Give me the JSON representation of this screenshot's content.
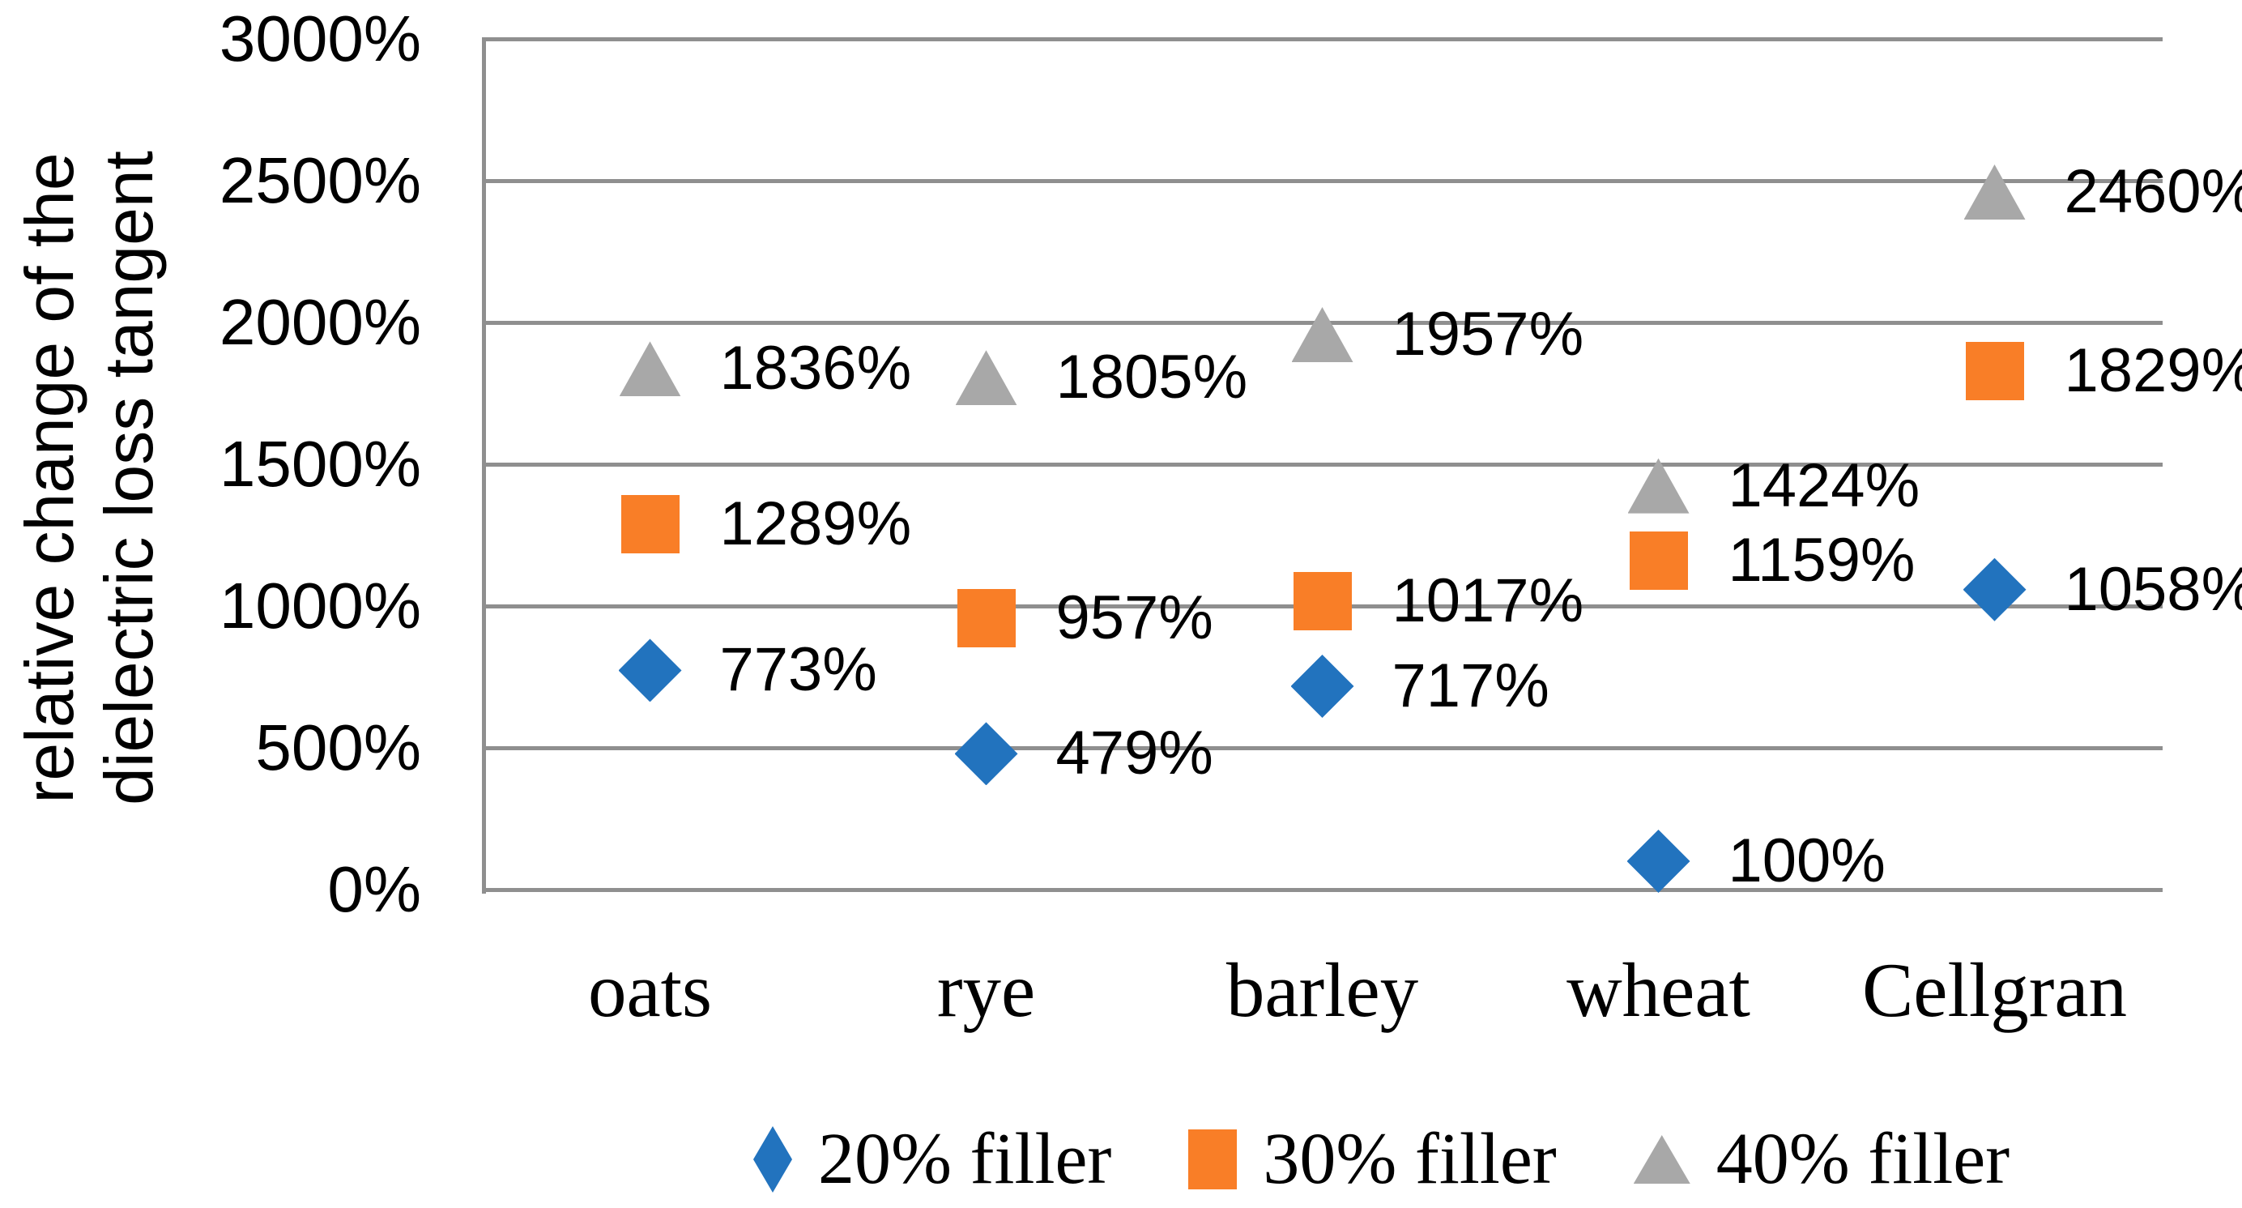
{
  "chart_data": {
    "type": "scatter",
    "ylabel": "relative change of the dielectric loss tangent",
    "ylabel_lines": [
      "relative change of the",
      "dielectric loss tangent"
    ],
    "categories": [
      "oats",
      "rye",
      "barley",
      "wheat",
      "Cellgran"
    ],
    "series": [
      {
        "name": "20% filler",
        "marker": "diamond",
        "color": "#2273BE",
        "values": [
          773,
          479,
          717,
          100,
          1058
        ]
      },
      {
        "name": "30% filler",
        "marker": "square",
        "color": "#F97E27",
        "values": [
          1289,
          957,
          1017,
          1159,
          1829
        ]
      },
      {
        "name": "40% filler",
        "marker": "triangle",
        "color": "#A8A8A8",
        "values": [
          1836,
          1805,
          1957,
          1424,
          2460
        ]
      }
    ],
    "data_labels": true,
    "label_suffix": "%",
    "ylim": [
      0,
      3000
    ],
    "ytick_step": 500,
    "yticks_top_down": [
      "3000%",
      "2500%",
      "2000%",
      "1500%",
      "1000%",
      "500%",
      "0%"
    ],
    "grid": true,
    "legend_position": "bottom",
    "colors": {
      "gridline": "#8F8F8F",
      "text": "#000000",
      "background": "#FFFFFF"
    }
  }
}
